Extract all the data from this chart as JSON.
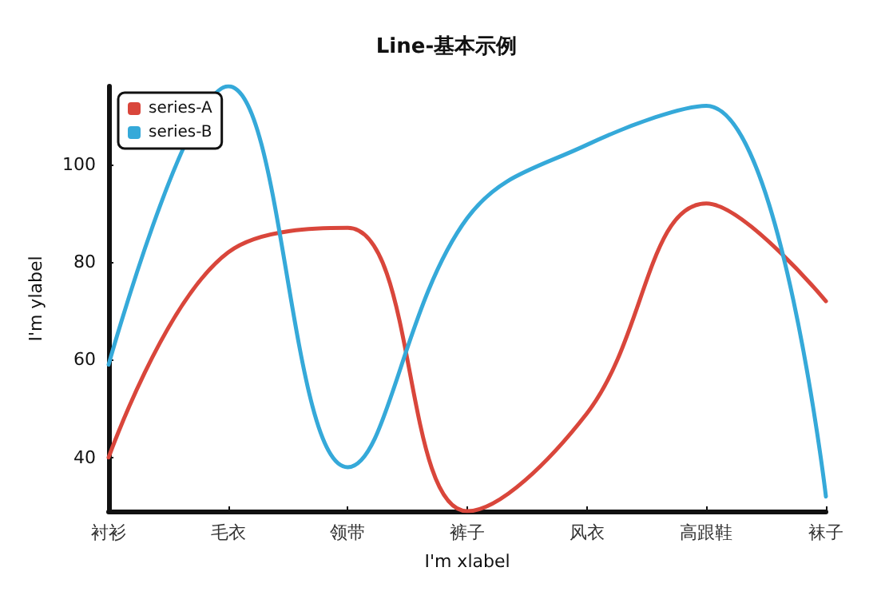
{
  "chart_data": {
    "type": "line",
    "title": "Line-基本示例",
    "xlabel": "I'm xlabel",
    "ylabel": "I'm ylabel",
    "categories": [
      "衬衫",
      "毛衣",
      "领带",
      "裤子",
      "风衣",
      "高跟鞋",
      "袜子"
    ],
    "series": [
      {
        "name": "series-A",
        "color": "#d9463b",
        "values": [
          40,
          82,
          87,
          29,
          49,
          92,
          72
        ]
      },
      {
        "name": "series-B",
        "color": "#35a9d9",
        "values": [
          59,
          116,
          38,
          89,
          104,
          112,
          32
        ]
      }
    ],
    "ylim": [
      29,
      116
    ],
    "yticks": [
      40,
      60,
      80,
      100
    ],
    "grid": false,
    "legend": "top left",
    "marker": "none",
    "line_style": "solid"
  }
}
